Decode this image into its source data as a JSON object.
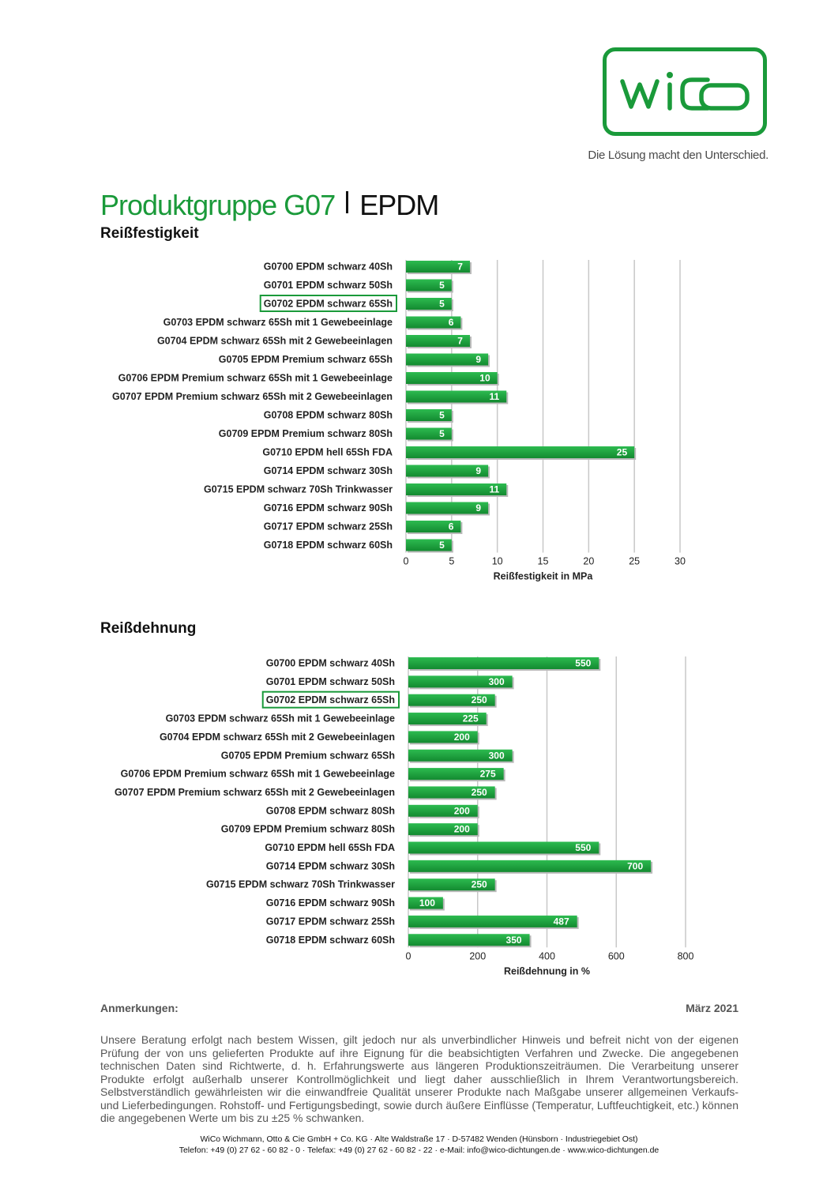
{
  "brand": {
    "logo_text": "wiCo",
    "slogan": "Die Lösung macht den Unterschied.",
    "green": "#1a9a3a"
  },
  "title": {
    "main": "Produktgruppe G07",
    "sub": "EPDM"
  },
  "chart_data": [
    {
      "type": "bar",
      "orientation": "horizontal",
      "title": "Reißfestigkeit",
      "xlabel": "Reißfestigkeit in MPa",
      "xlim": [
        0,
        30
      ],
      "ticks": [
        0,
        5,
        10,
        15,
        20,
        25,
        30
      ],
      "grid": true,
      "bar_color": "#1a9a3a",
      "highlight_index": 2,
      "categories": [
        "G0700 EPDM schwarz 40Sh",
        "G0701 EPDM schwarz 50Sh",
        "G0702 EPDM schwarz 65Sh",
        "G0703 EPDM schwarz 65Sh mit 1 Gewebeeinlage",
        "G0704 EPDM schwarz 65Sh mit 2 Gewebeeinlagen",
        "G0705 EPDM Premium schwarz 65Sh",
        "G0706 EPDM Premium schwarz 65Sh mit 1 Gewebeeinlage",
        "G0707 EPDM Premium schwarz 65Sh mit 2 Gewebeeinlagen",
        "G0708 EPDM schwarz 80Sh",
        "G0709 EPDM Premium schwarz 80Sh",
        "G0710 EPDM hell 65Sh FDA",
        "G0714 EPDM schwarz 30Sh",
        "G0715 EPDM schwarz 70Sh Trinkwasser",
        "G0716 EPDM schwarz 90Sh",
        "G0717 EPDM schwarz 25Sh",
        "G0718 EPDM schwarz 60Sh"
      ],
      "values": [
        7,
        5,
        5,
        6,
        7,
        9,
        10,
        11,
        5,
        5,
        25,
        9,
        11,
        9,
        6,
        5
      ]
    },
    {
      "type": "bar",
      "orientation": "horizontal",
      "title": "Reißdehnung",
      "xlabel": "Reißdehnung in %",
      "xlim": [
        0,
        800
      ],
      "ticks": [
        0,
        200,
        400,
        600,
        800
      ],
      "grid": true,
      "bar_color": "#1a9a3a",
      "highlight_index": 2,
      "categories": [
        "G0700 EPDM schwarz 40Sh",
        "G0701 EPDM schwarz 50Sh",
        "G0702 EPDM schwarz 65Sh",
        "G0703 EPDM schwarz 65Sh mit 1 Gewebeeinlage",
        "G0704 EPDM schwarz 65Sh mit 2 Gewebeeinlagen",
        "G0705 EPDM Premium schwarz 65Sh",
        "G0706 EPDM Premium schwarz 65Sh mit 1 Gewebeeinlage",
        "G0707 EPDM Premium schwarz 65Sh mit 2 Gewebeeinlagen",
        "G0708 EPDM schwarz 80Sh",
        "G0709 EPDM Premium schwarz 80Sh",
        "G0710 EPDM hell 65Sh FDA",
        "G0714 EPDM schwarz 30Sh",
        "G0715 EPDM schwarz 70Sh Trinkwasser",
        "G0716 EPDM schwarz 90Sh",
        "G0717 EPDM schwarz 25Sh",
        "G0718 EPDM schwarz 60Sh"
      ],
      "values": [
        550,
        300,
        250,
        225,
        200,
        300,
        275,
        250,
        200,
        200,
        550,
        700,
        250,
        100,
        487,
        350
      ]
    }
  ],
  "notes": {
    "label": "Anmerkungen:",
    "date": "März 2021",
    "text": "Unsere Beratung erfolgt nach bestem Wissen, gilt jedoch nur als unverbindlicher Hinweis und befreit nicht von der eigenen Prüfung der von uns gelieferten Produkte auf ihre Eignung für die beabsichtigten Verfahren und Zwecke. Die angegebenen technischen Daten sind Richtwerte, d. h. Erfahrungswerte aus längeren Produktionszeiträumen. Die Verarbeitung unserer Produkte erfolgt außerhalb unserer Kontrollmöglichkeit und liegt daher ausschließlich in Ihrem Verantwortungsbereich. Selbstverständlich gewährleisten wir die einwandfreie Qualität unserer Produkte nach Maßgabe unserer allgemeinen Verkaufs- und Lieferbedingungen. Rohstoff- und Fertigungsbedingt, sowie durch äußere Einflüsse (Temperatur, Luftfeuchtigkeit, etc.) können die angegebenen Werte um bis zu ±25 % schwanken."
  },
  "footer": {
    "line1": "WiCo Wichmann, Otto & Cie GmbH + Co. KG · Alte Waldstraße 17 · D-57482 Wenden (Hünsborn · Industriegebiet Ost)",
    "line2": "Telefon: +49 (0) 27 62 - 60 82 - 0 · Telefax: +49 (0) 27 62 - 60 82 - 22 · e-Mail: info@wico-dichtungen.de · www.wico-dichtungen.de"
  }
}
